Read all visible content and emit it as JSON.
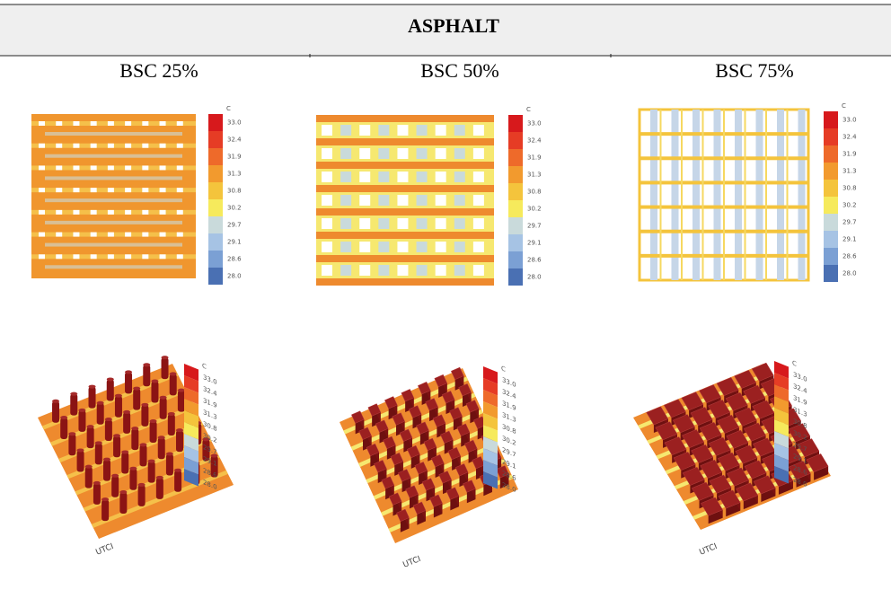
{
  "header": {
    "title": "ASPHALT"
  },
  "columns": [
    "BSC 25%",
    "BSC 50%",
    "BSC 75%"
  ],
  "legend": {
    "unit": "C",
    "labels": [
      "33.0",
      "32.4",
      "31.9",
      "31.3",
      "30.8",
      "30.2",
      "29.7",
      "29.1",
      "28.6",
      "28.0"
    ]
  },
  "view_label": "UTCI"
}
